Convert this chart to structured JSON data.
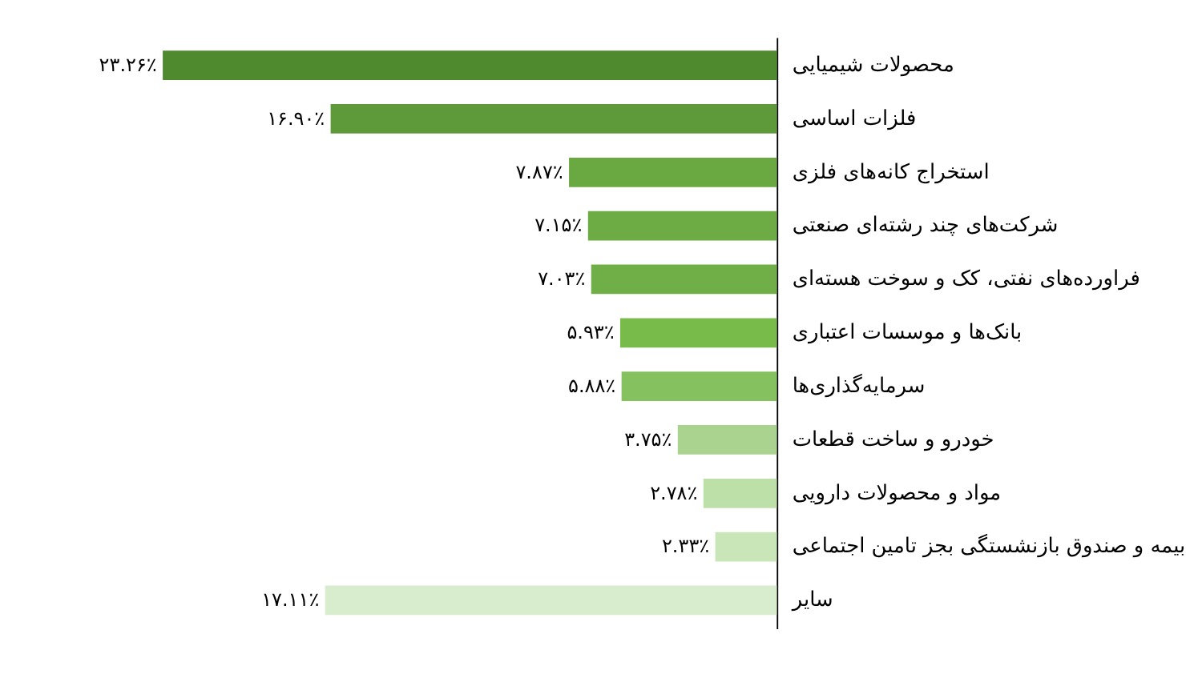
{
  "chart_data": {
    "type": "bar",
    "orientation": "horizontal",
    "categories": [
      "محصولات شیمیایی",
      "فلزات اساسی",
      "استخراج کانه‌های فلزی",
      "شرکت‌های چند رشته‌ای صنعتی",
      "فراورده‌های نفتی، کک و سوخت هسته‌ای",
      "بانک‌ها و موسسات اعتباری",
      "سرمایه‌گذاری‌ها",
      "خودرو و ساخت قطعات",
      "مواد و محصولات دارویی",
      "بیمه و صندوق بازنشستگی بجز تامین اجتماعی",
      "سایر"
    ],
    "values": [
      23.26,
      16.9,
      7.87,
      7.15,
      7.03,
      5.93,
      5.88,
      3.75,
      2.78,
      2.33,
      17.11
    ],
    "value_labels": [
      "۲۳.۲۶٪",
      "۱۶.۹۰٪",
      "۷.۸۷٪",
      "۷.۱۵٪",
      "۷.۰۳٪",
      "۵.۹۳٪",
      "۵.۸۸٪",
      "۳.۷۵٪",
      "۲.۷۸٪",
      "۲.۳۳٪",
      "۱۷.۱۱٪"
    ],
    "colors": [
      "#4f8a2e",
      "#5f9a3a",
      "#6aa842",
      "#6dab45",
      "#70ae47",
      "#78bb4a",
      "#86c160",
      "#a9d38f",
      "#bde0a8",
      "#c9e6b8",
      "#d8ecce"
    ]
  }
}
